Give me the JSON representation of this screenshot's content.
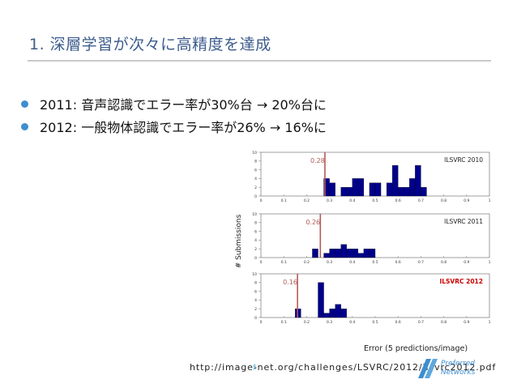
{
  "slide": {
    "title": "1. 深層学習が次々に高精度を達成",
    "bullets": [
      "2011: 音声認識でエラー率が30%台 → 20%台に",
      "2012: 一般物体認識でエラー率が26% → 16%に"
    ],
    "source_url": "http://image-net.org/challenges/LSVRC/2012/ilsvrc2012.pdf",
    "page_number": "5",
    "logo_text": "Preferred Networks"
  },
  "colors": {
    "title": "#3d5c8c",
    "bullet": "#3d8ed0",
    "bar": "#00008b",
    "marker": "#b55a5a",
    "highlight": "#cc0000"
  },
  "chart_data": {
    "type": "bar",
    "ylabel": "# Submissions",
    "xlabel": "Error (5 predictions/image)",
    "xlim": [
      0,
      1
    ],
    "ylim": [
      0,
      10
    ],
    "x_ticks": [
      "0",
      "0.1",
      "0.2",
      "0.3",
      "0.4",
      "0.5",
      "0.6",
      "0.7",
      "0.8",
      "0.9",
      "1"
    ],
    "y_ticks": [
      "0",
      "2",
      "4",
      "6",
      "8",
      "10"
    ],
    "bin_width": 0.025,
    "panels": [
      {
        "name": "ILSVRC 2010",
        "highlight": false,
        "marker_value": 0.28,
        "marker_label": "0.28",
        "bins": [
          {
            "x": 0.275,
            "value": 4
          },
          {
            "x": 0.3,
            "value": 3
          },
          {
            "x": 0.35,
            "value": 2
          },
          {
            "x": 0.375,
            "value": 2
          },
          {
            "x": 0.4,
            "value": 4
          },
          {
            "x": 0.425,
            "value": 4
          },
          {
            "x": 0.475,
            "value": 3
          },
          {
            "x": 0.5,
            "value": 3
          },
          {
            "x": 0.55,
            "value": 3
          },
          {
            "x": 0.575,
            "value": 7
          },
          {
            "x": 0.6,
            "value": 2
          },
          {
            "x": 0.625,
            "value": 2
          },
          {
            "x": 0.65,
            "value": 4
          },
          {
            "x": 0.675,
            "value": 7
          },
          {
            "x": 0.7,
            "value": 2
          }
        ]
      },
      {
        "name": "ILSVRC 2011",
        "highlight": false,
        "marker_value": 0.26,
        "marker_label": "0.26",
        "bins": [
          {
            "x": 0.225,
            "value": 2
          },
          {
            "x": 0.275,
            "value": 1
          },
          {
            "x": 0.3,
            "value": 2
          },
          {
            "x": 0.325,
            "value": 2
          },
          {
            "x": 0.35,
            "value": 3
          },
          {
            "x": 0.375,
            "value": 2
          },
          {
            "x": 0.4,
            "value": 2
          },
          {
            "x": 0.425,
            "value": 1
          },
          {
            "x": 0.45,
            "value": 2
          },
          {
            "x": 0.475,
            "value": 2
          }
        ]
      },
      {
        "name": "ILSVRC 2012",
        "highlight": true,
        "marker_value": 0.16,
        "marker_label": "0.16",
        "bins": [
          {
            "x": 0.15,
            "value": 2
          },
          {
            "x": 0.25,
            "value": 8
          },
          {
            "x": 0.275,
            "value": 1
          },
          {
            "x": 0.3,
            "value": 2
          },
          {
            "x": 0.325,
            "value": 3
          },
          {
            "x": 0.35,
            "value": 2
          }
        ]
      }
    ]
  }
}
